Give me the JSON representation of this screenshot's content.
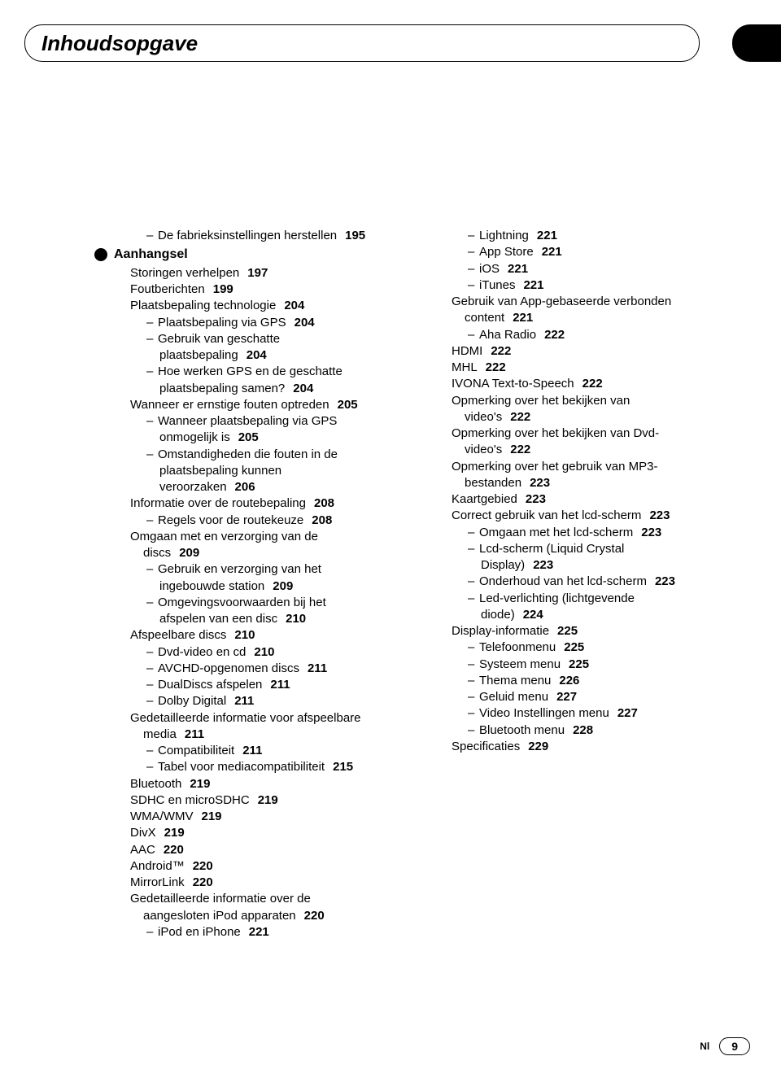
{
  "title": "Inhoudsopgave",
  "footer": {
    "lang": "Nl",
    "page": "9"
  },
  "section_head": "Aanhangsel",
  "left": [
    {
      "lvl": 3,
      "dash": true,
      "t": "De fabrieksinstellingen herstellen",
      "p": "195"
    },
    {
      "section": true
    },
    {
      "lvl": 2,
      "t": "Storingen verhelpen",
      "p": "197"
    },
    {
      "lvl": 2,
      "t": "Foutberichten",
      "p": "199"
    },
    {
      "lvl": 2,
      "t": "Plaatsbepaling technologie",
      "p": "204"
    },
    {
      "lvl": 3,
      "dash": true,
      "t": "Plaatsbepaling via GPS",
      "p": "204"
    },
    {
      "lvl": 3,
      "dash": true,
      "t": "Gebruik van geschatte"
    },
    {
      "lvl": "3c",
      "t": "plaatsbepaling",
      "p": "204"
    },
    {
      "lvl": 3,
      "dash": true,
      "t": "Hoe werken GPS en de geschatte"
    },
    {
      "lvl": "3c",
      "t": "plaatsbepaling samen?",
      "p": "204"
    },
    {
      "lvl": 2,
      "t": "Wanneer er ernstige fouten optreden",
      "p": "205"
    },
    {
      "lvl": 3,
      "dash": true,
      "t": "Wanneer plaatsbepaling via GPS"
    },
    {
      "lvl": "3c",
      "t": "onmogelijk is",
      "p": "205"
    },
    {
      "lvl": 3,
      "dash": true,
      "t": "Omstandigheden die fouten in de"
    },
    {
      "lvl": "3c",
      "t": "plaatsbepaling kunnen"
    },
    {
      "lvl": "3c",
      "t": "veroorzaken",
      "p": "206"
    },
    {
      "lvl": 2,
      "t": "Informatie over de routebepaling",
      "p": "208"
    },
    {
      "lvl": 3,
      "dash": true,
      "t": "Regels voor de routekeuze",
      "p": "208"
    },
    {
      "lvl": 2,
      "t": "Omgaan met en verzorging van de"
    },
    {
      "lvl": "2c",
      "t": "discs",
      "p": "209"
    },
    {
      "lvl": 3,
      "dash": true,
      "t": "Gebruik en verzorging van het"
    },
    {
      "lvl": "3c",
      "t": "ingebouwde station",
      "p": "209"
    },
    {
      "lvl": 3,
      "dash": true,
      "t": "Omgevingsvoorwaarden bij het"
    },
    {
      "lvl": "3c",
      "t": "afspelen van een disc",
      "p": "210"
    },
    {
      "lvl": 2,
      "t": "Afspeelbare discs",
      "p": "210"
    },
    {
      "lvl": 3,
      "dash": true,
      "t": "Dvd-video en cd",
      "p": "210"
    },
    {
      "lvl": 3,
      "dash": true,
      "t": "AVCHD-opgenomen discs",
      "p": "211"
    },
    {
      "lvl": 3,
      "dash": true,
      "t": "DualDiscs afspelen",
      "p": "211"
    },
    {
      "lvl": 3,
      "dash": true,
      "t": "Dolby Digital",
      "p": "211"
    },
    {
      "lvl": 2,
      "t": "Gedetailleerde informatie voor afspeelbare"
    },
    {
      "lvl": "2c",
      "t": "media",
      "p": "211"
    },
    {
      "lvl": 3,
      "dash": true,
      "t": "Compatibiliteit",
      "p": "211"
    },
    {
      "lvl": 3,
      "dash": true,
      "t": "Tabel voor mediacompatibiliteit",
      "p": "215"
    },
    {
      "lvl": 2,
      "t": "Bluetooth",
      "p": "219"
    },
    {
      "lvl": 2,
      "t": "SDHC en microSDHC",
      "p": "219"
    },
    {
      "lvl": 2,
      "t": "WMA/WMV",
      "p": "219"
    },
    {
      "lvl": 2,
      "t": "DivX",
      "p": "219"
    },
    {
      "lvl": 2,
      "t": "AAC",
      "p": "220"
    },
    {
      "lvl": 2,
      "t": "Android™",
      "p": "220"
    },
    {
      "lvl": 2,
      "t": "MirrorLink",
      "p": "220"
    },
    {
      "lvl": 2,
      "t": "Gedetailleerde informatie over de"
    },
    {
      "lvl": "2c",
      "t": "aangesloten iPod apparaten",
      "p": "220"
    },
    {
      "lvl": 3,
      "dash": true,
      "t": "iPod en iPhone",
      "p": "221"
    }
  ],
  "right": [
    {
      "lvl": 3,
      "dash": true,
      "t": "Lightning",
      "p": "221"
    },
    {
      "lvl": 3,
      "dash": true,
      "t": "App Store",
      "p": "221"
    },
    {
      "lvl": 3,
      "dash": true,
      "t": "iOS",
      "p": "221"
    },
    {
      "lvl": 3,
      "dash": true,
      "t": "iTunes",
      "p": "221"
    },
    {
      "lvl": 2,
      "t": "Gebruik van App-gebaseerde verbonden"
    },
    {
      "lvl": "2c",
      "t": "content",
      "p": "221"
    },
    {
      "lvl": 3,
      "dash": true,
      "t": "Aha Radio",
      "p": "222"
    },
    {
      "lvl": 2,
      "t": "HDMI",
      "p": "222"
    },
    {
      "lvl": 2,
      "t": "MHL",
      "p": "222"
    },
    {
      "lvl": 2,
      "t": "IVONA Text-to-Speech",
      "p": "222"
    },
    {
      "lvl": 2,
      "t": "Opmerking over het bekijken van"
    },
    {
      "lvl": "2c",
      "t": "video's",
      "p": "222"
    },
    {
      "lvl": 2,
      "t": "Opmerking over het bekijken van Dvd-"
    },
    {
      "lvl": "2c",
      "t": "video's",
      "p": "222"
    },
    {
      "lvl": 2,
      "t": "Opmerking over het gebruik van MP3-"
    },
    {
      "lvl": "2c",
      "t": "bestanden",
      "p": "223"
    },
    {
      "lvl": 2,
      "t": "Kaartgebied",
      "p": "223"
    },
    {
      "lvl": 2,
      "t": "Correct gebruik van het lcd-scherm",
      "p": "223"
    },
    {
      "lvl": 3,
      "dash": true,
      "t": "Omgaan met het lcd-scherm",
      "p": "223"
    },
    {
      "lvl": 3,
      "dash": true,
      "t": "Lcd-scherm (Liquid Crystal"
    },
    {
      "lvl": "3c",
      "t": "Display)",
      "p": "223"
    },
    {
      "lvl": 3,
      "dash": true,
      "t": "Onderhoud van het lcd-scherm",
      "p": "223"
    },
    {
      "lvl": 3,
      "dash": true,
      "t": "Led-verlichting (lichtgevende"
    },
    {
      "lvl": "3c",
      "t": "diode)",
      "p": "224"
    },
    {
      "lvl": 2,
      "t": "Display-informatie",
      "p": "225"
    },
    {
      "lvl": 3,
      "dash": true,
      "t": "Telefoonmenu",
      "p": "225"
    },
    {
      "lvl": 3,
      "dash": true,
      "t": "Systeem menu",
      "p": "225"
    },
    {
      "lvl": 3,
      "dash": true,
      "t": "Thema menu",
      "p": "226"
    },
    {
      "lvl": 3,
      "dash": true,
      "t": "Geluid menu",
      "p": "227"
    },
    {
      "lvl": 3,
      "dash": true,
      "t": "Video Instellingen menu",
      "p": "227"
    },
    {
      "lvl": 3,
      "dash": true,
      "t": "Bluetooth menu",
      "p": "228"
    },
    {
      "lvl": 2,
      "t": "Specificaties",
      "p": "229"
    }
  ]
}
